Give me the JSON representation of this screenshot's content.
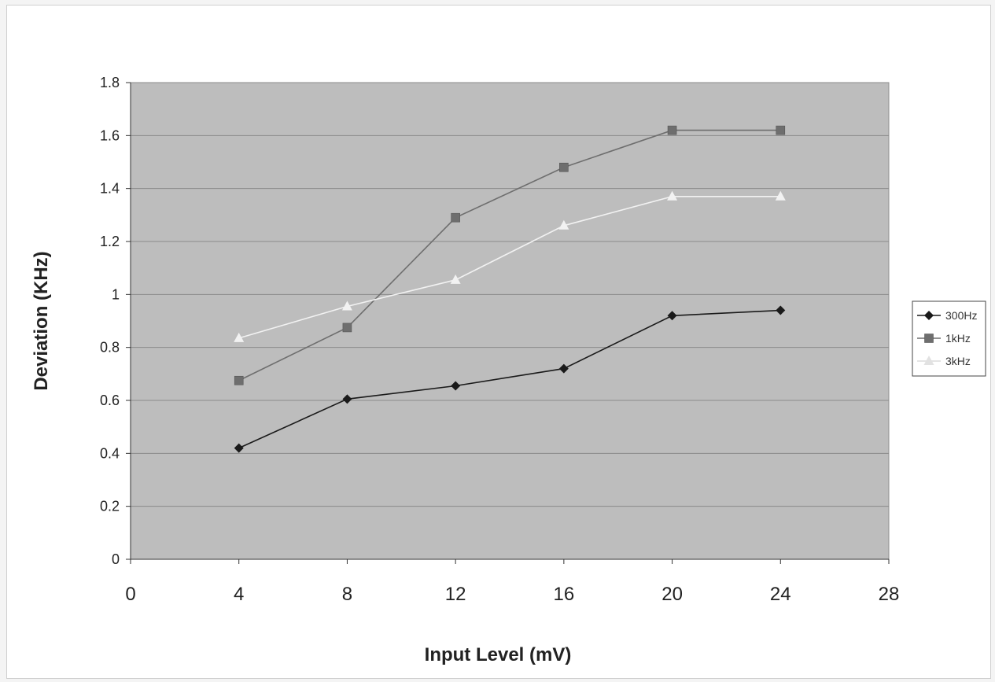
{
  "chart_data": {
    "type": "line",
    "title": "",
    "xlabel": "Input Level (mV)",
    "ylabel": "Deviation (KHz)",
    "xlim": [
      0,
      28
    ],
    "ylim": [
      0,
      1.8
    ],
    "x_ticks": [
      "0",
      "4",
      "8",
      "12",
      "16",
      "20",
      "24",
      "28"
    ],
    "y_ticks": [
      "0",
      "0.2",
      "0.4",
      "0.6",
      "0.8",
      "1",
      "1.2",
      "1.4",
      "1.6",
      "1.8"
    ],
    "grid": "horizontal",
    "legend_position": "right",
    "x": [
      4,
      8,
      12,
      16,
      20,
      24
    ],
    "series": [
      {
        "name": "300Hz",
        "values": [
          0.42,
          0.605,
          0.655,
          0.72,
          0.92,
          0.94
        ],
        "color": "#1a1a1a",
        "marker": "diamond"
      },
      {
        "name": "1kHz",
        "values": [
          0.675,
          0.875,
          1.29,
          1.48,
          1.62,
          1.62
        ],
        "color": "#6e6e6e",
        "marker": "square"
      },
      {
        "name": "3kHz",
        "values": [
          0.835,
          0.955,
          1.055,
          1.26,
          1.37,
          1.37
        ],
        "color": "#f2f2f2",
        "marker": "triangle"
      }
    ],
    "plot_background": "#bdbdbd",
    "gridline_color": "#8a8a8a"
  }
}
